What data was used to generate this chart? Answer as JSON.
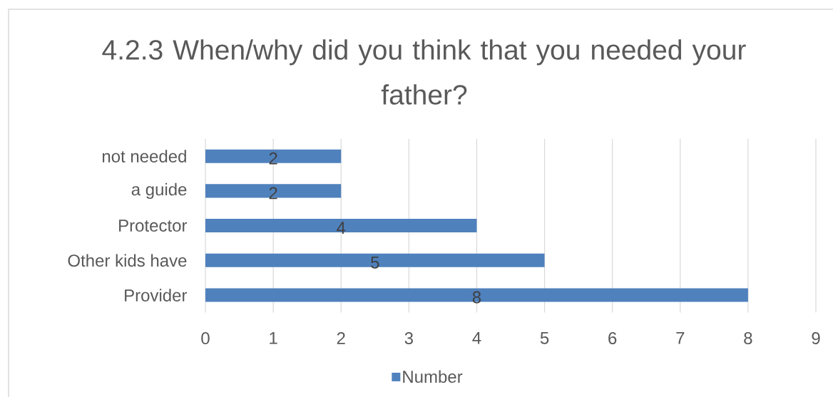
{
  "chart_data": {
    "type": "bar",
    "orientation": "horizontal",
    "title": "4.2.3 When/why did you think that you needed your father?",
    "categories": [
      "not needed",
      "a guide",
      "Protector",
      "Other kids have",
      "Provider"
    ],
    "series": [
      {
        "name": "Number",
        "color": "#4f81bd",
        "values": [
          2,
          2,
          4,
          5,
          8
        ]
      }
    ],
    "xlim": [
      0,
      9
    ],
    "xticks": [
      0,
      1,
      2,
      3,
      4,
      5,
      6,
      7,
      8,
      9
    ],
    "grid": "x",
    "legend": "bottom",
    "data_labels": true
  }
}
